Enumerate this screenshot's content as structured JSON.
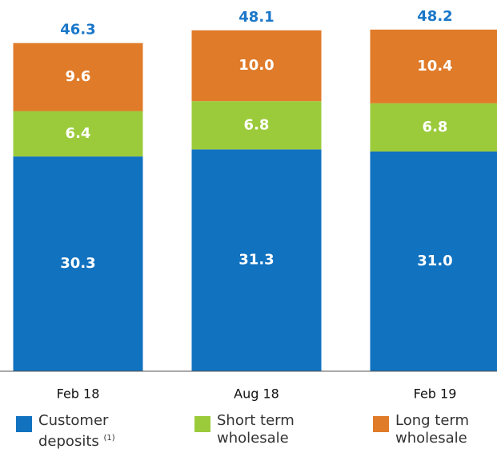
{
  "chart_data": {
    "type": "stacked_bar",
    "categories": [
      "Feb 18",
      "Aug 18",
      "Feb 19"
    ],
    "series": [
      {
        "name": "Customer deposits",
        "note_ref": "(1)",
        "color": "#1172c0",
        "values": [
          30.3,
          31.3,
          31.0
        ],
        "value_labels": [
          "30.3",
          "31.3",
          "31.0"
        ]
      },
      {
        "name": "Short term wholesale",
        "color": "#9bcb3b",
        "values": [
          6.4,
          6.8,
          6.8
        ],
        "value_labels": [
          "6.4",
          "6.8",
          "6.8"
        ]
      },
      {
        "name": "Long term wholesale",
        "color": "#e07b2a",
        "values": [
          9.6,
          10.0,
          10.4
        ],
        "value_labels": [
          "9.6",
          "10.0",
          "10.4"
        ]
      }
    ],
    "totals": [
      46.3,
      48.1,
      48.2
    ],
    "totals_color": "#1a77c9",
    "ylim": [
      0,
      50
    ]
  }
}
